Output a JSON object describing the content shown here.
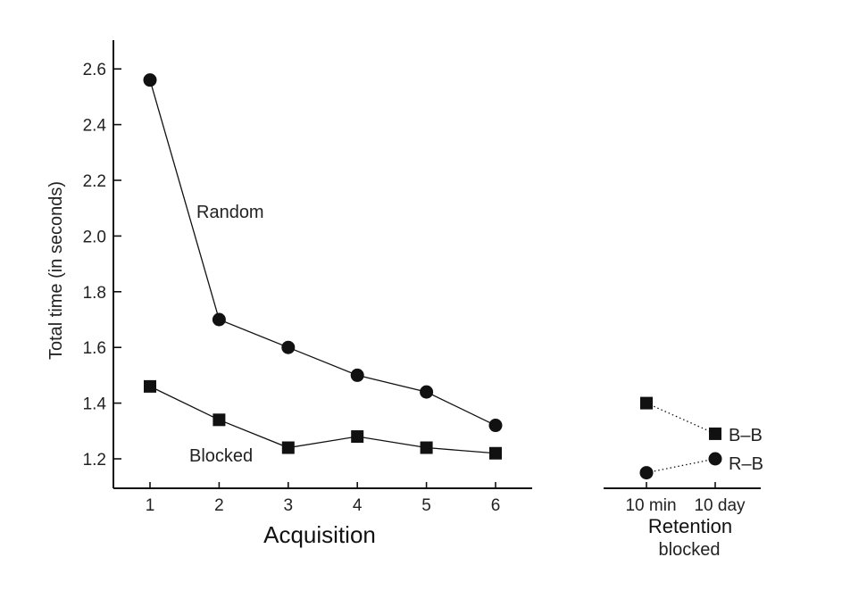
{
  "chart_data": [
    {
      "type": "line",
      "panel": "acquisition",
      "xlabel": "Acquisition",
      "ylabel": "Total time (in seconds)",
      "x": [
        1,
        2,
        3,
        4,
        5,
        6
      ],
      "x_ticks": [
        "1",
        "2",
        "3",
        "4",
        "5",
        "6"
      ],
      "ylim": [
        1.15,
        2.7
      ],
      "y_ticks": [
        "1.2",
        "1.4",
        "1.6",
        "1.8",
        "2.0",
        "2.2",
        "2.4",
        "2.6"
      ],
      "grid": false,
      "series": [
        {
          "name": "Random",
          "marker": "circle",
          "values": [
            2.56,
            1.7,
            1.6,
            1.5,
            1.44,
            1.32
          ]
        },
        {
          "name": "Blocked",
          "marker": "square",
          "values": [
            1.46,
            1.34,
            1.24,
            1.28,
            1.24,
            1.22
          ]
        }
      ]
    },
    {
      "type": "line",
      "panel": "retention",
      "xlabel": "Retention",
      "xlabel_sub": "blocked",
      "categories": [
        "10 min",
        "10 day"
      ],
      "ylim": [
        1.15,
        2.7
      ],
      "line_style": "dotted",
      "series": [
        {
          "name": "B–B",
          "marker": "square",
          "values": [
            1.4,
            1.29
          ]
        },
        {
          "name": "R–B",
          "marker": "circle",
          "values": [
            1.15,
            1.2
          ]
        }
      ]
    }
  ],
  "colors": {
    "ink": "#111111"
  }
}
